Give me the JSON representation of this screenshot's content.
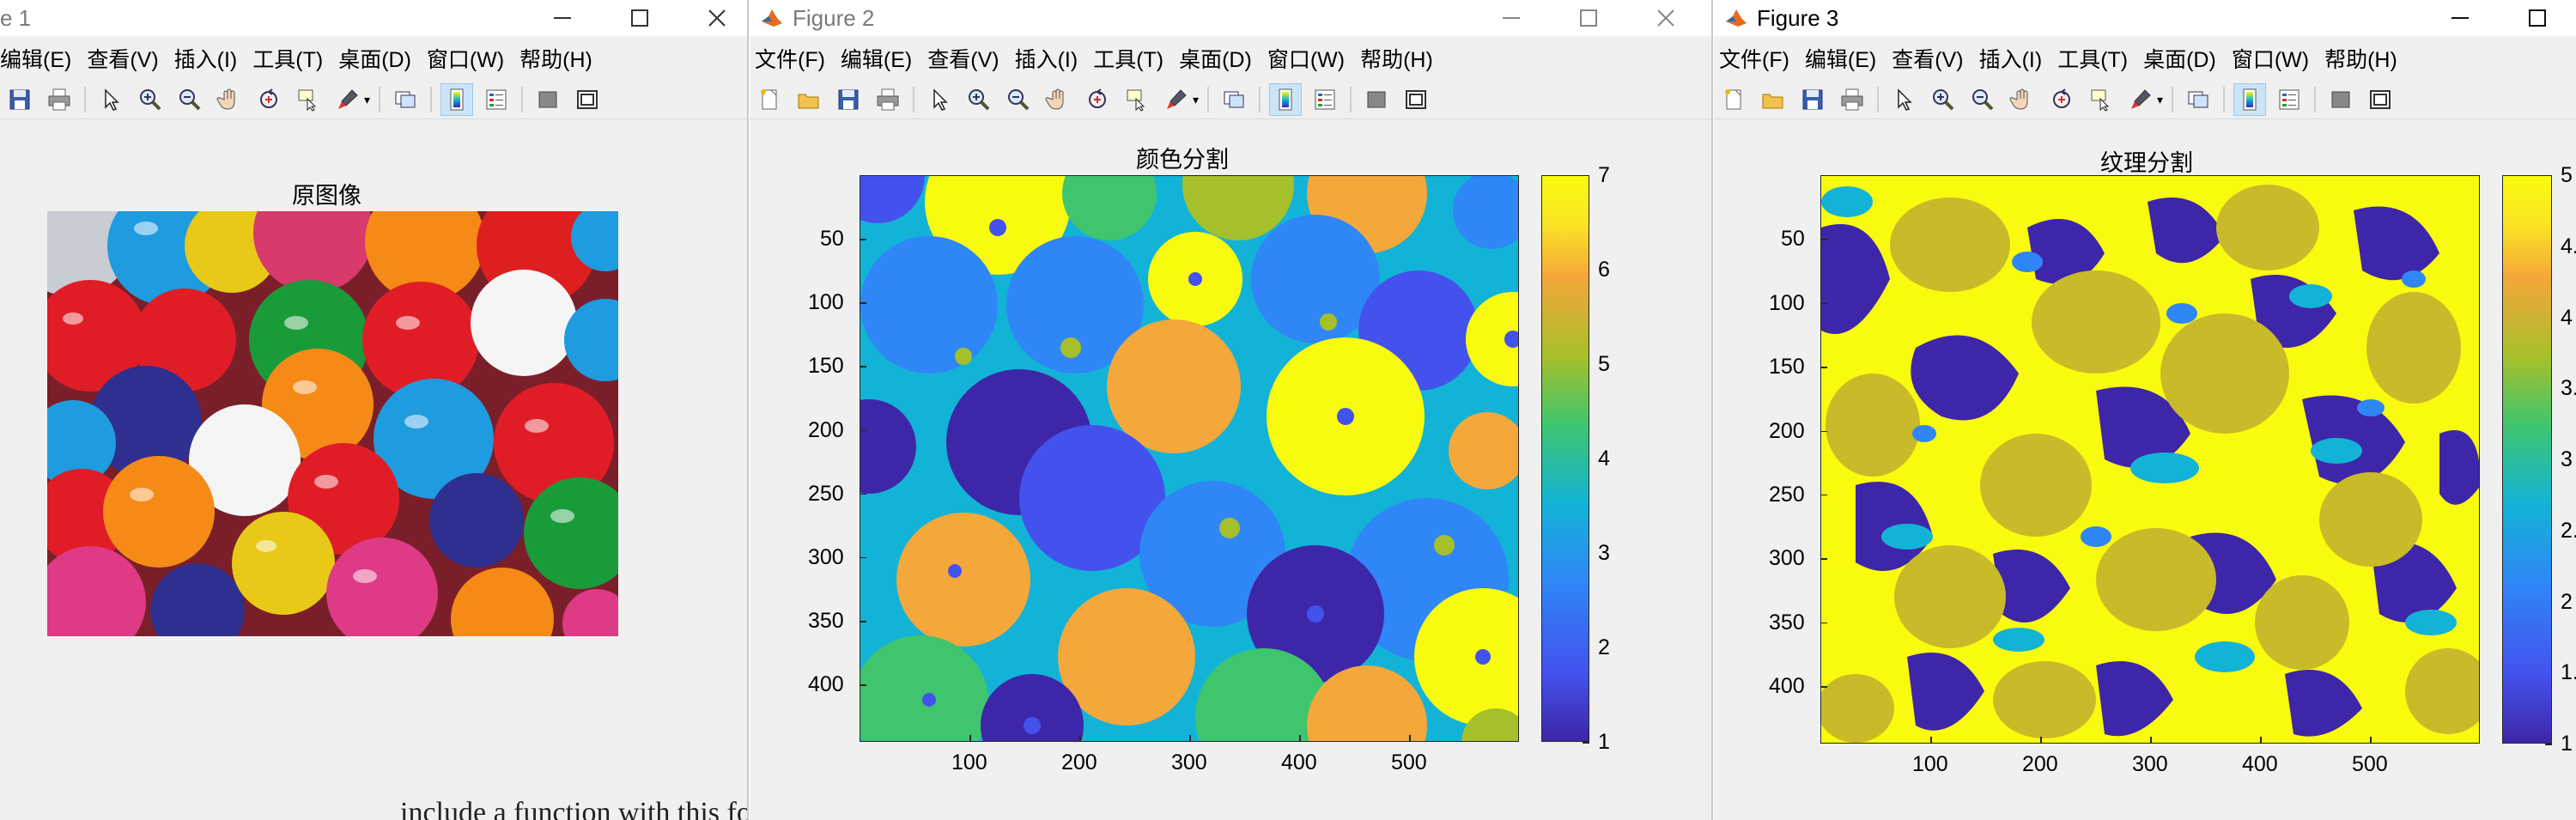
{
  "windows": {
    "fig1": {
      "title": "e 1",
      "ax_title": "原图像"
    },
    "fig2": {
      "title": "Figure 2",
      "ax_title": "颜色分割",
      "yticks": [
        "50",
        "100",
        "150",
        "200",
        "250",
        "300",
        "350",
        "400"
      ],
      "xticks": [
        "100",
        "200",
        "300",
        "400",
        "500"
      ],
      "cticks": [
        "7",
        "6",
        "5",
        "4",
        "3",
        "2",
        "1"
      ]
    },
    "fig3": {
      "title": "Figure 3",
      "ax_title": "纹理分割",
      "yticks": [
        "50",
        "100",
        "150",
        "200",
        "250",
        "300",
        "350",
        "400"
      ],
      "xticks": [
        "100",
        "200",
        "300",
        "400",
        "500"
      ],
      "cticks": [
        "5",
        "4.",
        "4",
        "3.",
        "3",
        "2.",
        "2",
        "1.",
        "1"
      ]
    }
  },
  "menu_fig1": [
    "编辑(E)",
    "查看(V)",
    "插入(I)",
    "工具(T)",
    "桌面(D)",
    "窗口(W)",
    "帮助(H)"
  ],
  "menu_full": [
    "文件(F)",
    "编辑(E)",
    "查看(V)",
    "插入(I)",
    "工具(T)",
    "桌面(D)",
    "窗口(W)",
    "帮助(H)"
  ],
  "toolbar_icons": [
    "save-icon",
    "print-icon",
    "select-arrow-icon",
    "zoom-in-icon",
    "zoom-out-icon",
    "pan-hand-icon",
    "rotate-3d-icon",
    "data-cursor-icon",
    "brush-icon",
    "link-plot-icon",
    "colorbar-icon",
    "legend-icon",
    "hide-plot-tools-icon",
    "show-plot-tools-icon"
  ],
  "background_text": "include a function with this form:",
  "colors": {
    "parula_dark": "#3e26a8",
    "parula_blue": "#4352ed",
    "parula_lightblue": "#2f86f6",
    "parula_teal": "#13b3d7",
    "parula_green": "#3ec56e",
    "parula_olive": "#c9ba2a",
    "parula_orange": "#f4a73a",
    "parula_yellow": "#f9fb0e"
  }
}
